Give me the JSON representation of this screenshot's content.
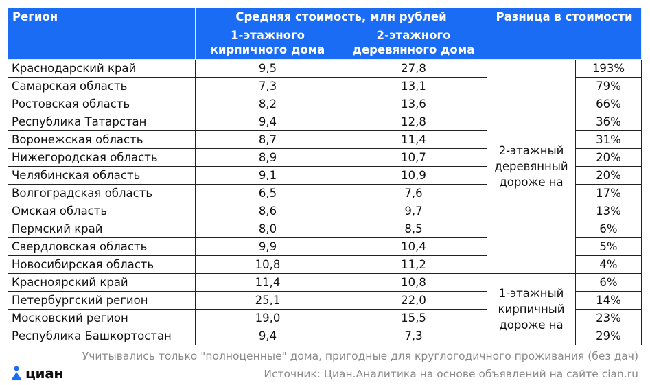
{
  "header": {
    "region": "Регион",
    "avg_cost": "Средняя стоимость, млн рублей",
    "col1": "1-этажного кирпичного дома",
    "col2": "2-этажного деревянного дома",
    "diff": "Разница в стоимости"
  },
  "rows": [
    {
      "region": "Краснодарский край",
      "brick": "9,5",
      "wood": "27,8",
      "diff": "193%"
    },
    {
      "region": "Самарская область",
      "brick": "7,3",
      "wood": "13,1",
      "diff": "79%"
    },
    {
      "region": "Ростовская область",
      "brick": "8,2",
      "wood": "13,6",
      "diff": "66%"
    },
    {
      "region": "Республика Татарстан",
      "brick": "9,4",
      "wood": "12,8",
      "diff": "36%"
    },
    {
      "region": "Воронежская область",
      "brick": "8,7",
      "wood": "11,4",
      "diff": "31%"
    },
    {
      "region": "Нижегородская область",
      "brick": "8,9",
      "wood": "10,7",
      "diff": "20%"
    },
    {
      "region": "Челябинская область",
      "brick": "9,1",
      "wood": "10,9",
      "diff": "20%"
    },
    {
      "region": "Волгоградская область",
      "brick": "6,5",
      "wood": "7,6",
      "diff": "17%"
    },
    {
      "region": "Омская область",
      "brick": "8,6",
      "wood": "9,7",
      "diff": "13%"
    },
    {
      "region": "Пермский край",
      "brick": "8,0",
      "wood": "8,5",
      "diff": "6%"
    },
    {
      "region": "Свердловская область",
      "brick": "9,9",
      "wood": "10,4",
      "diff": "5%"
    },
    {
      "region": "Новосибирская область",
      "brick": "10,8",
      "wood": "11,2",
      "diff": "4%"
    },
    {
      "region": "Красноярский край",
      "brick": "11,4",
      "wood": "10,8",
      "diff": "6%"
    },
    {
      "region": "Петербургский регион",
      "brick": "25,1",
      "wood": "22,0",
      "diff": "14%"
    },
    {
      "region": "Московский регион",
      "brick": "19,0",
      "wood": "15,5",
      "diff": "23%"
    },
    {
      "region": "Республика Башкортостан",
      "brick": "9,4",
      "wood": "7,3",
      "diff": "29%"
    }
  ],
  "groups": {
    "wood_pricier": "2-этажный деревянный дороже на",
    "brick_pricier": "1-этажный кирпичный дороже на"
  },
  "footer": {
    "note": "Учитывались только \"полноценные\" дома, пригодные для круглогодичного проживания (без дач)",
    "source": "Источник: Циан.Аналитика на основе объявлений на сайте cian.ru",
    "logo": "циан"
  },
  "colors": {
    "header_bg": "#1a6cf5",
    "logo_blue": "#1a6cf5"
  }
}
